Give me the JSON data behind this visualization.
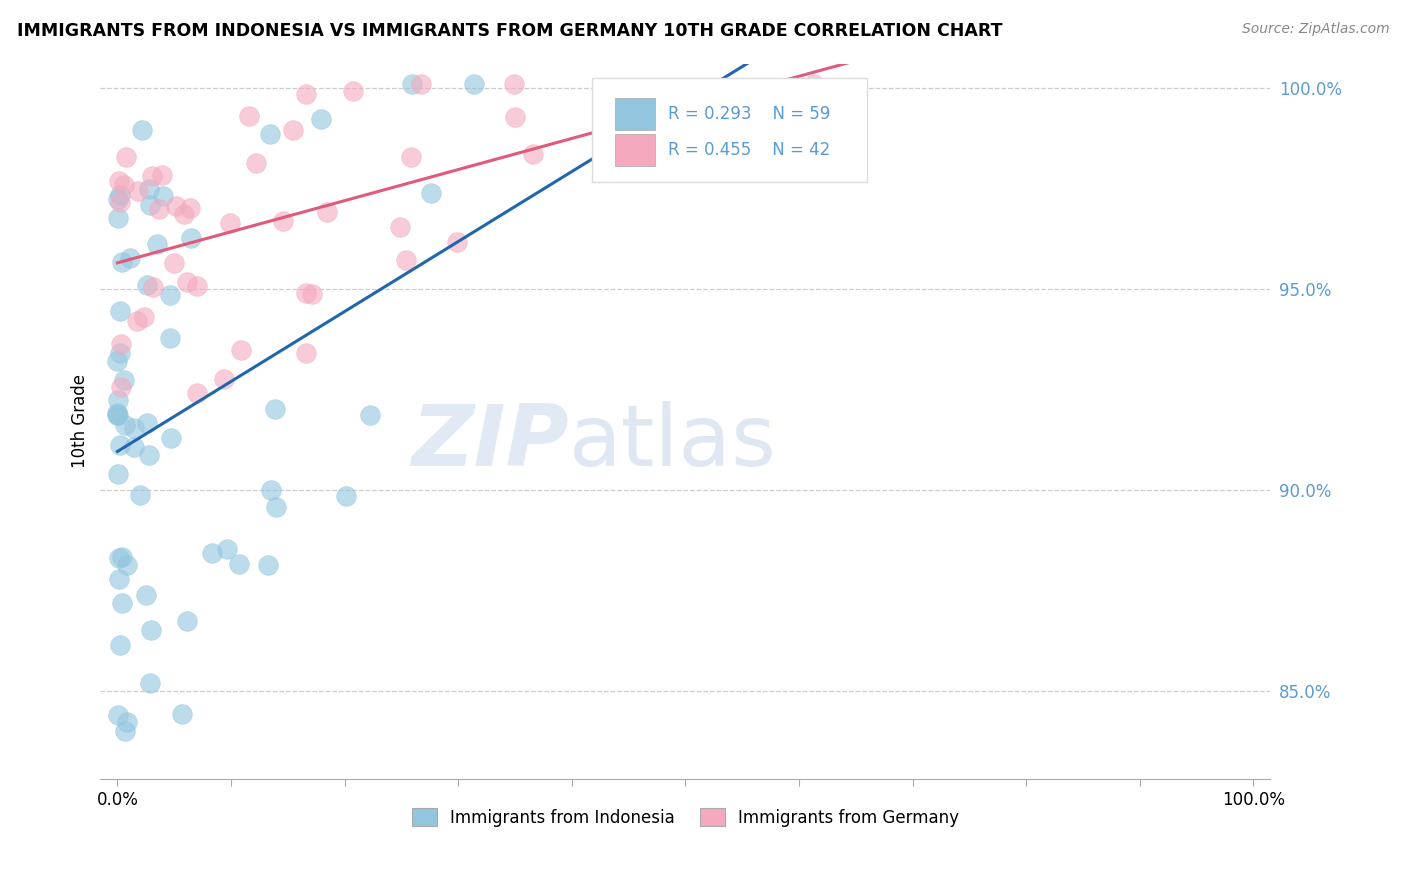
{
  "title": "IMMIGRANTS FROM INDONESIA VS IMMIGRANTS FROM GERMANY 10TH GRADE CORRELATION CHART",
  "source": "Source: ZipAtlas.com",
  "ylabel": "10th Grade",
  "legend_label1": "Immigrants from Indonesia",
  "legend_label2": "Immigrants from Germany",
  "R1": 0.293,
  "N1": 59,
  "R2": 0.455,
  "N2": 42,
  "color1": "#92c5de",
  "color2": "#f4a9be",
  "trendline1_color": "#2166ac",
  "trendline2_color": "#e05a7a",
  "ytick_vals": [
    1.0,
    0.95,
    0.9,
    0.85
  ],
  "ytick_color": "#5b9bd5",
  "watermark_zip": "ZIP",
  "watermark_atlas": "atlas",
  "background_color": "#ffffff",
  "seed_blue": 1,
  "seed_pink": 2
}
